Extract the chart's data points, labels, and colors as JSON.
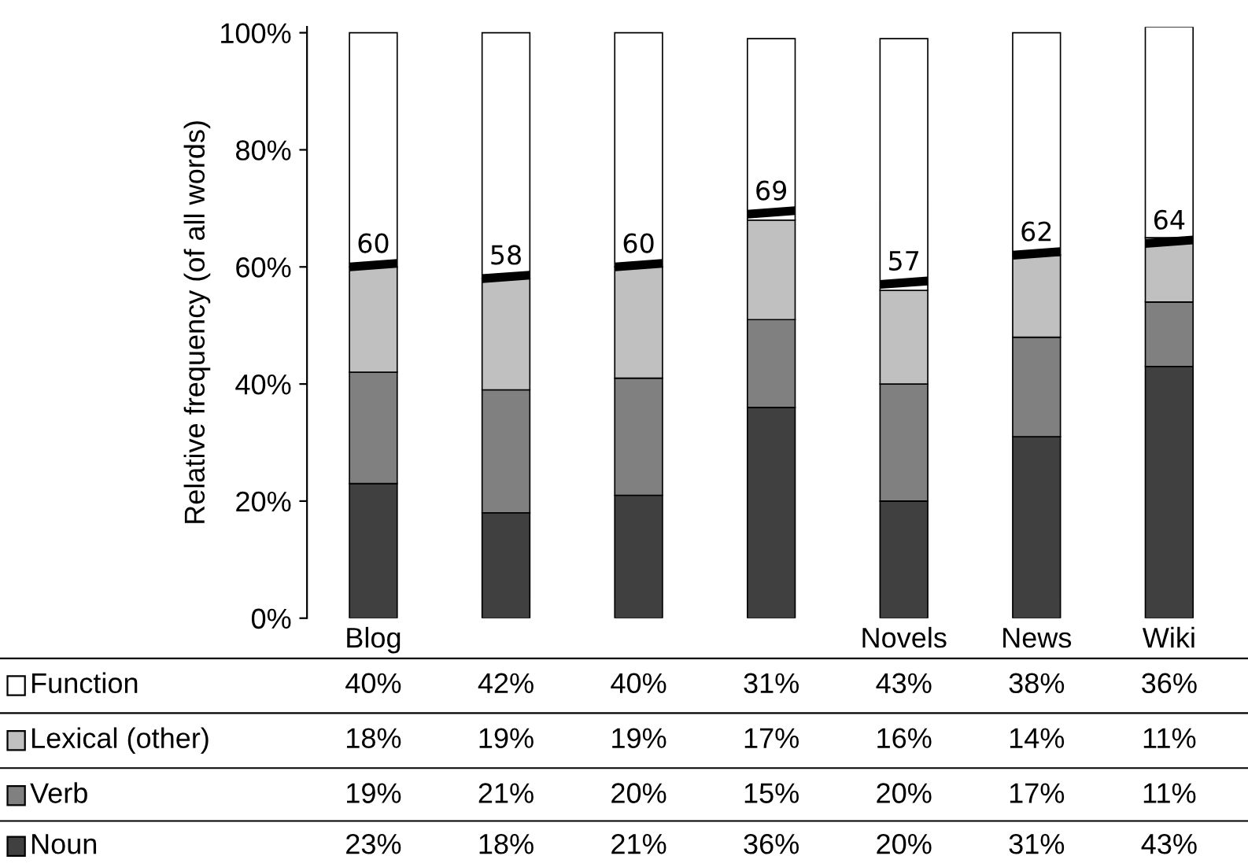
{
  "chart_data": {
    "type": "bar",
    "stacked": true,
    "ylabel": "Relative frequency (of all words)",
    "categories": [
      "Blog",
      null,
      null,
      null,
      "Novels",
      "News",
      "Wiki"
    ],
    "series": [
      {
        "name": "Noun",
        "color": "#404040",
        "values": [
          23,
          18,
          21,
          36,
          20,
          31,
          43
        ],
        "value_labels": [
          "23%",
          "18%",
          "21%",
          "36%",
          "20%",
          "31%",
          "43%"
        ]
      },
      {
        "name": "Verb",
        "color": "#808080",
        "values": [
          19,
          21,
          20,
          15,
          20,
          17,
          11
        ],
        "value_labels": [
          "19%",
          "21%",
          "20%",
          "15%",
          "20%",
          "17%",
          "11%"
        ]
      },
      {
        "name": "Lexical (other)",
        "color": "#c0c0c0",
        "values": [
          18,
          19,
          19,
          17,
          16,
          14,
          11
        ],
        "value_labels": [
          "18%",
          "19%",
          "19%",
          "17%",
          "16%",
          "14%",
          "11%"
        ]
      },
      {
        "name": "Function",
        "color": "#ffffff",
        "values": [
          40,
          42,
          40,
          31,
          43,
          38,
          36
        ],
        "value_labels": [
          "40%",
          "42%",
          "40%",
          "31%",
          "43%",
          "38%",
          "36%"
        ]
      }
    ],
    "ylim": [
      0,
      101
    ],
    "yticks": [
      {
        "value": 0,
        "label": "0%"
      },
      {
        "value": 20,
        "label": "20%"
      },
      {
        "value": 40,
        "label": "40%"
      },
      {
        "value": 60,
        "label": "60%"
      },
      {
        "value": 80,
        "label": "80%"
      },
      {
        "value": 100,
        "label": "100%"
      }
    ],
    "annotations": [
      {
        "text": "60",
        "x": "Blog",
        "y": 60
      },
      {
        "text": "58",
        "y": 58
      },
      {
        "text": "60",
        "y": 60
      },
      {
        "text": "69",
        "y": 69
      },
      {
        "text": "57",
        "x": "Novels",
        "y": 57
      },
      {
        "text": "62",
        "x": "News",
        "y": 62
      },
      {
        "text": "64",
        "x": "Wiki",
        "y": 64
      }
    ],
    "legend": "bottom",
    "grid": false
  }
}
